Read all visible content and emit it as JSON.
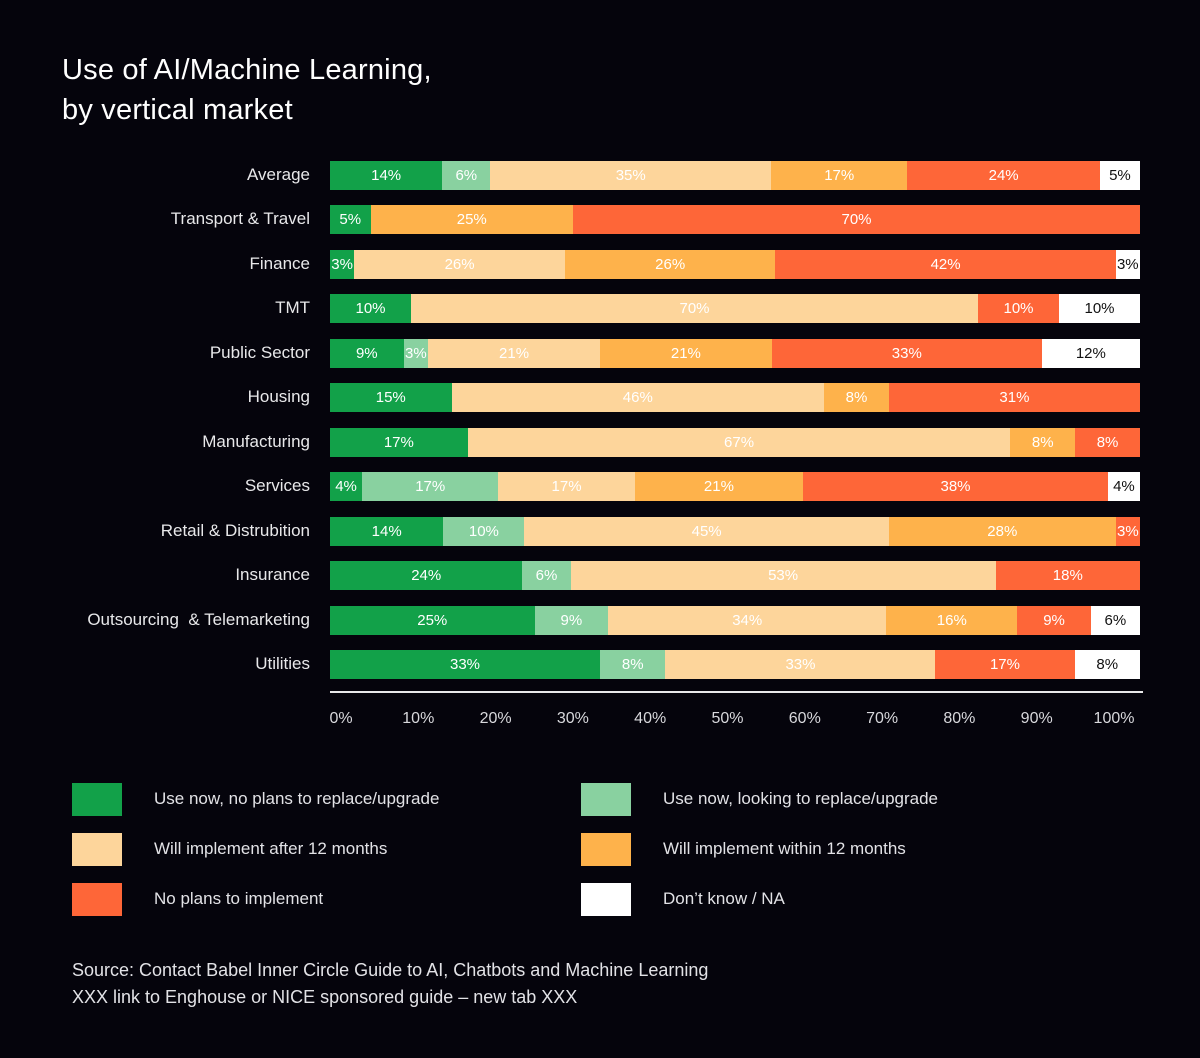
{
  "chart_data": {
    "type": "bar",
    "orientation": "horizontal",
    "stacked": true,
    "title": "Use of AI/Machine Learning, by vertical market",
    "title_lines": [
      "Use of AI/Machine Learning,",
      "by vertical market"
    ],
    "xlabel": "",
    "ylabel": "",
    "xlim": [
      0,
      100
    ],
    "x_ticks": [
      "0%",
      "10%",
      "20%",
      "30%",
      "40%",
      "50%",
      "60%",
      "70%",
      "80%",
      "90%",
      "100%"
    ],
    "grid": false,
    "legend_position": "bottom",
    "categories": [
      "Average",
      "Transport & Travel",
      "Finance",
      "TMT",
      "Public Sector",
      "Housing",
      "Manufacturing",
      "Services",
      "Retail & Distrubition",
      "Insurance",
      "Outsourcing  & Telemarketing",
      "Utilities"
    ],
    "series": [
      {
        "name": "Use now, no plans to replace/upgrade",
        "color": "#12a149",
        "text_color": "#ffffff",
        "values": [
          14,
          5,
          3,
          10,
          9,
          15,
          17,
          4,
          14,
          24,
          25,
          33
        ]
      },
      {
        "name": "Use now, looking to replace/upgrade",
        "color": "#89d1a0",
        "text_color": "#ffffff",
        "values": [
          6,
          0,
          0,
          0,
          3,
          0,
          0,
          17,
          10,
          6,
          9,
          8
        ]
      },
      {
        "name": "Will implement after 12 months",
        "color": "#fdd59b",
        "text_color": "#ffffff",
        "values": [
          35,
          0,
          26,
          70,
          21,
          46,
          67,
          17,
          45,
          53,
          34,
          33
        ]
      },
      {
        "name": "Will implement within 12 months",
        "color": "#feb24b",
        "text_color": "#ffffff",
        "values": [
          17,
          25,
          26,
          0,
          21,
          8,
          8,
          21,
          28,
          0,
          16,
          0
        ]
      },
      {
        "name": "No plans to implement",
        "color": "#fe6638",
        "text_color": "#ffffff",
        "values": [
          24,
          70,
          42,
          10,
          33,
          31,
          8,
          38,
          3,
          18,
          9,
          17
        ]
      },
      {
        "name": "Don’t know / NA",
        "color": "#ffffff",
        "text_color": "#111111",
        "values": [
          5,
          0,
          3,
          10,
          12,
          0,
          0,
          4,
          0,
          0,
          6,
          8
        ]
      }
    ],
    "value_suffix": "%"
  },
  "source": {
    "line1": "Source: Contact Babel Inner Circle Guide to AI, Chatbots and Machine Learning",
    "line2": "XXX link to Enghouse or NICE sponsored guide – new tab XXX"
  }
}
